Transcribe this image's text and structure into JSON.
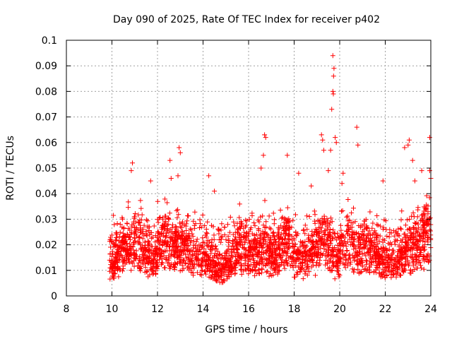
{
  "chart_data": {
    "type": "scatter",
    "title": "Day 090 of 2025, Rate Of TEC Index for receiver p402",
    "xlabel": "GPS time / hours",
    "ylabel": "ROTI / TECUs",
    "xlim": [
      8,
      24
    ],
    "ylim": [
      0,
      0.1
    ],
    "grid": true,
    "marker": "+",
    "color": "#ff0000",
    "x_ticks": [
      "8",
      "10",
      "12",
      "14",
      "16",
      "18",
      "20",
      "22",
      "24"
    ],
    "y_ticks": [
      "0",
      "0.01",
      "0.02",
      "0.03",
      "0.04",
      "0.05",
      "0.06",
      "0.07",
      "0.08",
      "0.09",
      "0.1"
    ],
    "data_start_hour": 9.9,
    "data_end_hour": 24.0,
    "typical_band": [
      0.004,
      0.035
    ],
    "outliers": [
      {
        "x": 10.9,
        "y": 0.052
      },
      {
        "x": 10.85,
        "y": 0.049
      },
      {
        "x": 11.7,
        "y": 0.045
      },
      {
        "x": 12.55,
        "y": 0.053
      },
      {
        "x": 12.6,
        "y": 0.046
      },
      {
        "x": 12.95,
        "y": 0.058
      },
      {
        "x": 13.0,
        "y": 0.056
      },
      {
        "x": 12.9,
        "y": 0.047
      },
      {
        "x": 14.25,
        "y": 0.047
      },
      {
        "x": 14.5,
        "y": 0.041
      },
      {
        "x": 16.55,
        "y": 0.05
      },
      {
        "x": 16.65,
        "y": 0.055
      },
      {
        "x": 16.7,
        "y": 0.063
      },
      {
        "x": 16.75,
        "y": 0.062
      },
      {
        "x": 17.7,
        "y": 0.055
      },
      {
        "x": 18.2,
        "y": 0.048
      },
      {
        "x": 18.75,
        "y": 0.043
      },
      {
        "x": 19.2,
        "y": 0.063
      },
      {
        "x": 19.25,
        "y": 0.061
      },
      {
        "x": 19.3,
        "y": 0.057
      },
      {
        "x": 19.5,
        "y": 0.049
      },
      {
        "x": 19.6,
        "y": 0.057
      },
      {
        "x": 19.65,
        "y": 0.073
      },
      {
        "x": 19.7,
        "y": 0.08
      },
      {
        "x": 19.72,
        "y": 0.079
      },
      {
        "x": 19.73,
        "y": 0.086
      },
      {
        "x": 19.75,
        "y": 0.089
      },
      {
        "x": 19.7,
        "y": 0.094
      },
      {
        "x": 19.8,
        "y": 0.062
      },
      {
        "x": 19.85,
        "y": 0.06
      },
      {
        "x": 20.15,
        "y": 0.048
      },
      {
        "x": 20.1,
        "y": 0.044
      },
      {
        "x": 20.75,
        "y": 0.066
      },
      {
        "x": 20.8,
        "y": 0.059
      },
      {
        "x": 21.9,
        "y": 0.045
      },
      {
        "x": 22.85,
        "y": 0.058
      },
      {
        "x": 23.05,
        "y": 0.061
      },
      {
        "x": 23.0,
        "y": 0.059
      },
      {
        "x": 23.2,
        "y": 0.053
      },
      {
        "x": 23.6,
        "y": 0.049
      },
      {
        "x": 23.95,
        "y": 0.062
      },
      {
        "x": 23.95,
        "y": 0.049
      },
      {
        "x": 23.3,
        "y": 0.045
      },
      {
        "x": 24.0,
        "y": 0.046
      }
    ]
  }
}
